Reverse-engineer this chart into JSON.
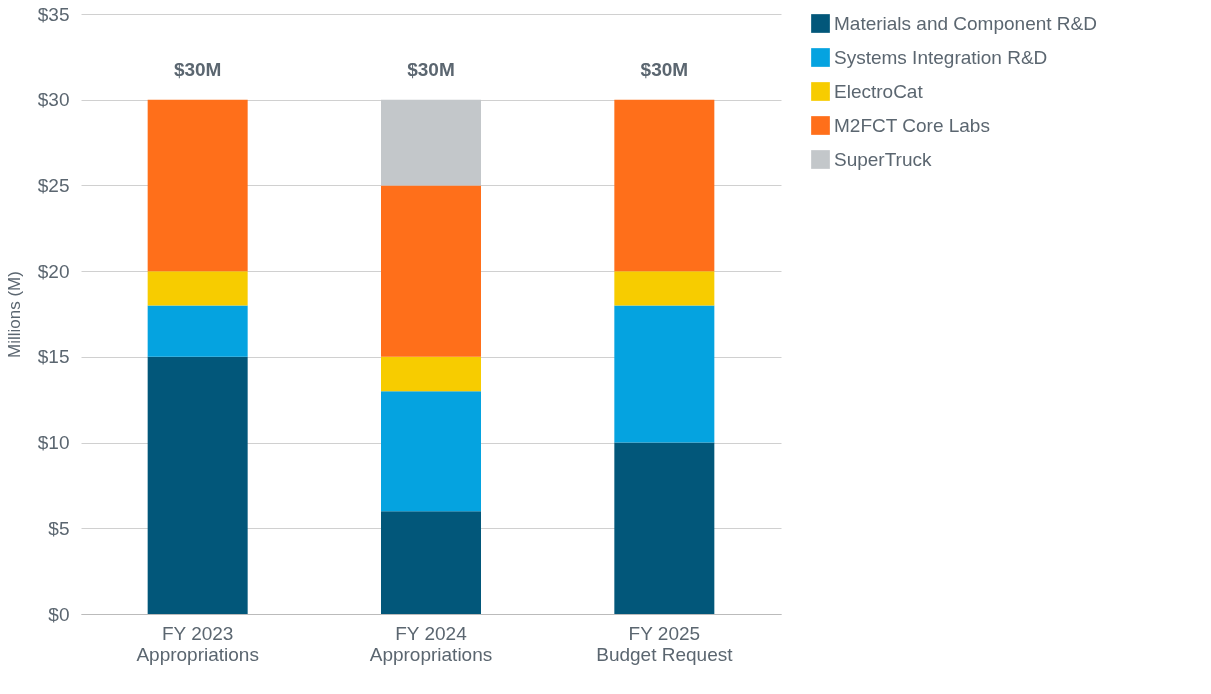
{
  "chart_data": {
    "type": "bar",
    "stacked": true,
    "ylabel": "Millions (M)",
    "categories": [
      "FY 2023\nAppropriations",
      "FY 2024\nAppropriations",
      "FY 2025\nBudget Request"
    ],
    "series": [
      {
        "name": "Materials and Component R&D",
        "color": "#02577a",
        "values": [
          15,
          6,
          10
        ]
      },
      {
        "name": "Systems Integration R&D",
        "color": "#05a3e0",
        "values": [
          3,
          7,
          8
        ]
      },
      {
        "name": "ElectroCat",
        "color": "#f7cc00",
        "values": [
          2,
          2,
          2
        ]
      },
      {
        "name": "M2FCT Core Labs",
        "color": "#ff6f1a",
        "values": [
          10,
          10,
          10
        ]
      },
      {
        "name": "SuperTruck",
        "color": "#c3c7ca",
        "values": [
          0,
          5,
          0
        ]
      }
    ],
    "ylim": [
      0,
      35
    ],
    "yticks": [
      {
        "value": 0,
        "label": "$0"
      },
      {
        "value": 5,
        "label": "$5"
      },
      {
        "value": 10,
        "label": "$10"
      },
      {
        "value": 15,
        "label": "$15"
      },
      {
        "value": 20,
        "label": "$20"
      },
      {
        "value": 25,
        "label": "$25"
      },
      {
        "value": 30,
        "label": "$30"
      },
      {
        "value": 35,
        "label": "$35"
      }
    ],
    "totals": [
      "$30M",
      "$30M",
      "$30M"
    ],
    "grid": "y",
    "legend": "right"
  }
}
